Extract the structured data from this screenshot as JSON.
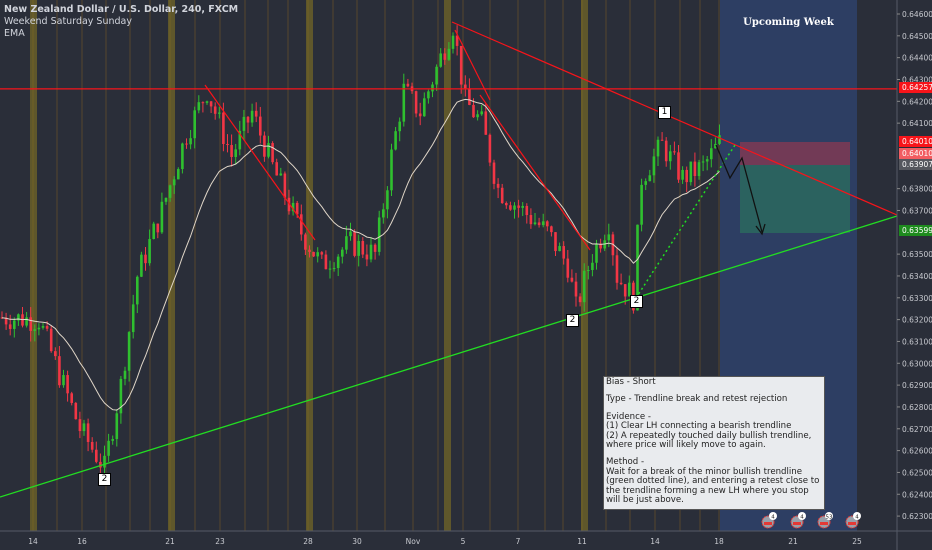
{
  "header": {
    "title": "New Zealand Dollar / U.S. Dollar, 240, FXCM",
    "indicator1": "Weekend Saturday Sunday",
    "indicator2": "EMA"
  },
  "upcoming_label": "Upcoming Week",
  "note": {
    "bias": "Bias - Short",
    "type": "Type - Trendline break and retest rejection",
    "evidence_title": "Evidence -",
    "evidence_1": "(1) Clear LH connecting a bearish trendline",
    "evidence_2": "(2) A repeatedly touched daily bullish trendline, where price will likely move to again.",
    "method_title": "Method -",
    "method": "Wait for a break of the minor bullish trendline (green dotted line), and entering a retest close to the trendline forming a new LH where you stop will be just above."
  },
  "wave_labels": [
    "1",
    "2",
    "2",
    "2"
  ],
  "price_badges": [
    {
      "text": "0.64257",
      "color": "#f7141a"
    },
    {
      "text": "0.64010",
      "color": "#f7141a"
    },
    {
      "text": "0.64010",
      "color": "#f25c61"
    },
    {
      "text": "0.63907",
      "color": "#55575e"
    },
    {
      "text": "0.63599",
      "color": "#1e8b1e"
    }
  ],
  "event_counts": [
    "4",
    "4",
    "53",
    "4"
  ],
  "chart_data": {
    "type": "candlestick",
    "symbol": "NZDUSD",
    "timeframe": "240",
    "ylim": [
      0.6225,
      0.6465
    ],
    "y_ticks": [
      "0.64600",
      "0.64500",
      "0.64400",
      "0.64300",
      "0.64200",
      "0.64100",
      "0.63800",
      "0.63700",
      "0.63500",
      "0.63400",
      "0.63300",
      "0.63200",
      "0.63100",
      "0.63000",
      "0.62900",
      "0.62800",
      "0.62700",
      "0.62600",
      "0.62500",
      "0.62400",
      "0.62300"
    ],
    "x_ticks": [
      "14",
      "16",
      "21",
      "23",
      "28",
      "30",
      "Nov",
      "5",
      "7",
      "11",
      "14",
      "18",
      "21",
      "25"
    ],
    "close_keypoints_bar_price": [
      [
        0,
        0.6321
      ],
      [
        9,
        0.632
      ],
      [
        19,
        0.627
      ],
      [
        25,
        0.6252
      ],
      [
        29,
        0.629
      ],
      [
        33,
        0.634
      ],
      [
        39,
        0.637
      ],
      [
        45,
        0.6405
      ],
      [
        50,
        0.6425
      ],
      [
        56,
        0.6395
      ],
      [
        61,
        0.6415
      ],
      [
        66,
        0.639
      ],
      [
        73,
        0.636
      ],
      [
        78,
        0.6345
      ],
      [
        85,
        0.6355
      ],
      [
        91,
        0.635
      ],
      [
        95,
        0.6395
      ],
      [
        98,
        0.6425
      ],
      [
        102,
        0.6415
      ],
      [
        107,
        0.644
      ],
      [
        110,
        0.6455
      ],
      [
        113,
        0.642
      ],
      [
        117,
        0.641
      ],
      [
        121,
        0.638
      ],
      [
        127,
        0.637
      ],
      [
        133,
        0.636
      ],
      [
        138,
        0.6345
      ],
      [
        140,
        0.6325
      ],
      [
        144,
        0.635
      ],
      [
        148,
        0.6365
      ],
      [
        150,
        0.634
      ],
      [
        154,
        0.633
      ],
      [
        156,
        0.6385
      ],
      [
        161,
        0.64
      ],
      [
        166,
        0.6385
      ],
      [
        171,
        0.639
      ],
      [
        175,
        0.6401
      ]
    ],
    "horizontal_resistance": 0.64257,
    "bearish_trendline": "red, connecting lower highs",
    "bullish_trendline": "green, daily rising",
    "trade": {
      "entry": 0.6401,
      "stop": 0.641,
      "target": 0.63599,
      "direction": "short"
    }
  }
}
